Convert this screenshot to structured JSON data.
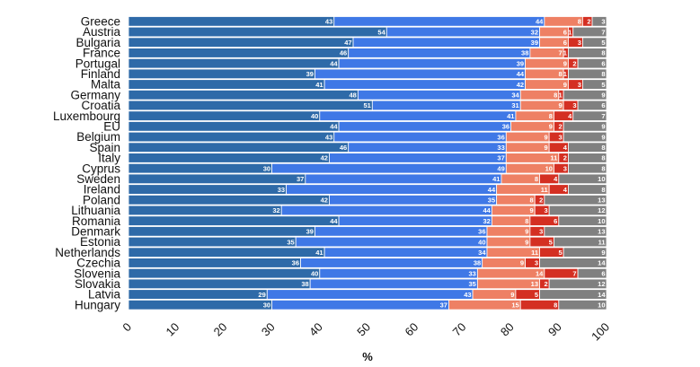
{
  "chart_data": {
    "type": "bar",
    "orientation": "horizontal",
    "stacked": true,
    "categories": [
      "Greece",
      "Austria",
      "Bulgaria",
      "France",
      "Portugal",
      "Finland",
      "Malta",
      "Germany",
      "Croatia",
      "Luxembourg",
      "EU",
      "Belgium",
      "Spain",
      "Italy",
      "Cyprus",
      "Sweden",
      "Ireland",
      "Poland",
      "Lithuania",
      "Romania",
      "Denmark",
      "Estonia",
      "Netherlands",
      "Czechia",
      "Slovenia",
      "Slovakia",
      "Latvia",
      "Hungary"
    ],
    "series": [
      {
        "color": "#2e6aa8",
        "values": [
          43,
          54,
          47,
          46,
          44,
          39,
          41,
          48,
          51,
          40,
          44,
          43,
          46,
          42,
          30,
          37,
          33,
          42,
          32,
          44,
          39,
          35,
          41,
          36,
          40,
          38,
          29,
          30
        ]
      },
      {
        "color": "#3f78e6",
        "values": [
          44,
          32,
          39,
          38,
          39,
          44,
          42,
          34,
          31,
          41,
          36,
          36,
          33,
          37,
          49,
          41,
          44,
          35,
          44,
          32,
          36,
          40,
          34,
          38,
          33,
          35,
          43,
          37
        ]
      },
      {
        "color": "#ee8064",
        "values": [
          8,
          6,
          6,
          7,
          9,
          8,
          9,
          8,
          9,
          8,
          9,
          9,
          9,
          11,
          10,
          8,
          11,
          8,
          9,
          8,
          9,
          9,
          11,
          9,
          14,
          13,
          9,
          15
        ]
      },
      {
        "color": "#d42f22",
        "values": [
          2,
          1,
          3,
          1,
          2,
          1,
          3,
          1,
          3,
          4,
          2,
          3,
          4,
          2,
          3,
          4,
          4,
          2,
          3,
          6,
          3,
          5,
          5,
          3,
          7,
          2,
          5,
          8
        ]
      },
      {
        "color": "#808080",
        "values": [
          3,
          7,
          5,
          8,
          6,
          8,
          5,
          9,
          6,
          7,
          9,
          9,
          8,
          8,
          8,
          10,
          8,
          13,
          12,
          10,
          13,
          11,
          9,
          14,
          6,
          12,
          14,
          10
        ]
      }
    ],
    "xlim": [
      0,
      100
    ],
    "xticks": [
      "0",
      "10",
      "20",
      "30",
      "40",
      "50",
      "60",
      "70",
      "80",
      "90",
      "100"
    ],
    "xlabel": "%",
    "ylabel": "",
    "title": "",
    "legend": "none",
    "grid": false
  }
}
